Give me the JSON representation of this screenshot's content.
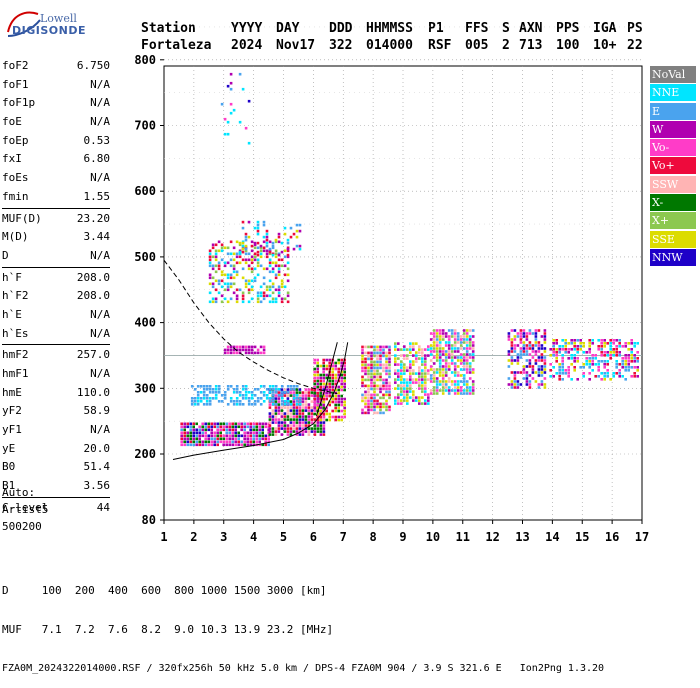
{
  "logo": {
    "line1": "Lowell",
    "line2": "DIGISONDE"
  },
  "header": {
    "row1": [
      "Station",
      "YYYY",
      "DAY",
      "DDD",
      "HHMMSS",
      "P1",
      "FFS",
      "S",
      "AXN",
      "PPS",
      "IGA",
      "PS"
    ],
    "row2": [
      "Fortaleza",
      "2024",
      "Nov17",
      "322",
      "014000",
      "RSF",
      "005",
      "2",
      "713",
      "100",
      "10+",
      "22"
    ]
  },
  "params": [
    [
      {
        "name": "foF2",
        "value": "6.750"
      },
      {
        "name": "foF1",
        "value": "N/A"
      },
      {
        "name": "foF1p",
        "value": "N/A"
      },
      {
        "name": "foE",
        "value": "N/A"
      },
      {
        "name": "foEp",
        "value": "0.53"
      },
      {
        "name": "fxI",
        "value": "6.80"
      },
      {
        "name": "foEs",
        "value": "N/A"
      },
      {
        "name": "fmin",
        "value": "1.55"
      }
    ],
    [
      {
        "name": "MUF(D)",
        "value": "23.20"
      },
      {
        "name": "M(D)",
        "value": "3.44"
      },
      {
        "name": "D",
        "value": "N/A"
      }
    ],
    [
      {
        "name": "h`F",
        "value": "208.0"
      },
      {
        "name": "h`F2",
        "value": "208.0"
      },
      {
        "name": "h`E",
        "value": "N/A"
      },
      {
        "name": "h`Es",
        "value": "N/A"
      }
    ],
    [
      {
        "name": "hmF2",
        "value": "257.0"
      },
      {
        "name": "hmF1",
        "value": "N/A"
      },
      {
        "name": "hmE",
        "value": "110.0"
      },
      {
        "name": "yF2",
        "value": "58.9"
      },
      {
        "name": "yF1",
        "value": "N/A"
      },
      {
        "name": "yE",
        "value": "20.0"
      },
      {
        "name": "B0",
        "value": "51.4"
      },
      {
        "name": "B1",
        "value": "3.56"
      }
    ],
    [
      {
        "name": "C-level",
        "value": "44"
      }
    ]
  ],
  "auto": {
    "line1": "Auto:",
    "line2": "Artist5",
    "line3": "500200"
  },
  "legend": [
    {
      "label": "NoVal",
      "color": "#808080"
    },
    {
      "label": "NNE",
      "color": "#00e5ff"
    },
    {
      "label": "E",
      "color": "#4aa3ee"
    },
    {
      "label": "W",
      "color": "#b000b0"
    },
    {
      "label": "Vo-",
      "color": "#ff3cc8"
    },
    {
      "label": "Vo+",
      "color": "#ee0a3c"
    },
    {
      "label": "SSW",
      "color": "#ffb4b4"
    },
    {
      "label": "X-",
      "color": "#007800"
    },
    {
      "label": "X+",
      "color": "#8cc850"
    },
    {
      "label": "SSE",
      "color": "#dcdc00"
    },
    {
      "label": "NNW",
      "color": "#1e00c8"
    }
  ],
  "footer": {
    "row1": "D     100  200  400  600  800 1000 1500 3000 [km]",
    "row2": "MUF   7.1  7.2  7.6  8.2  9.0 10.3 13.9 23.2 [MHz]",
    "row3": "FZA0M_2024322014000.RSF / 320fx256h 50 kHz 5.0 km / DPS-4 FZA0M 904 / 3.9 S 321.6 E   Ion2Png 1.3.20"
  },
  "chart_data": {
    "type": "scatter",
    "title": "",
    "xlabel": "",
    "ylabel": "",
    "xlim": [
      1,
      17
    ],
    "ylim": [
      80,
      900
    ],
    "x_ticks": [
      1,
      2,
      3,
      4,
      5,
      6,
      7,
      8,
      9,
      10,
      11,
      12,
      13,
      14,
      15,
      16,
      17
    ],
    "y_ticks": [
      80,
      200,
      300,
      400,
      500,
      600,
      700,
      800,
      900
    ],
    "grid": "dotted",
    "reference_line_y": 350,
    "clusters": [
      {
        "name": "F-trace-low",
        "x": [
          1.55,
          4.6
        ],
        "y": [
          212,
          248
        ],
        "colors": [
          "W",
          "Vo-",
          "Vo+",
          "X-",
          "NNW",
          "E",
          "W",
          "Vo-"
        ],
        "density": 0.95
      },
      {
        "name": "F-trace-mid",
        "x": [
          4.5,
          6.4
        ],
        "y": [
          225,
          300
        ],
        "colors": [
          "Vo+",
          "Vo-",
          "W",
          "X-",
          "NNW",
          "SSW"
        ],
        "density": 0.9
      },
      {
        "name": "F-trace-rise",
        "x": [
          6.0,
          7.1
        ],
        "y": [
          250,
          345
        ],
        "colors": [
          "Vo+",
          "Vo-",
          "SSE",
          "W",
          "X-"
        ],
        "density": 0.85
      },
      {
        "name": "E-blue-band",
        "x": [
          1.9,
          5.6
        ],
        "y": [
          275,
          305
        ],
        "colors": [
          "E",
          "NNE",
          "E"
        ],
        "density": 0.6
      },
      {
        "name": "band-8",
        "x": [
          7.6,
          8.6
        ],
        "y": [
          262,
          365
        ],
        "colors": [
          "Vo+",
          "W",
          "Vo-",
          "SSE",
          "SSW",
          "X+",
          "E"
        ],
        "density": 0.8
      },
      {
        "name": "band-9",
        "x": [
          8.7,
          9.9
        ],
        "y": [
          275,
          370
        ],
        "colors": [
          "W",
          "Vo-",
          "SSE",
          "SSW",
          "X+",
          "NNE"
        ],
        "density": 0.75
      },
      {
        "name": "band-10",
        "x": [
          9.9,
          11.4
        ],
        "y": [
          290,
          390
        ],
        "colors": [
          "NNE",
          "E",
          "W",
          "SSE",
          "X+",
          "SSW",
          "Vo-"
        ],
        "density": 0.75
      },
      {
        "name": "band-13",
        "x": [
          12.5,
          13.8
        ],
        "y": [
          300,
          390
        ],
        "colors": [
          "W",
          "Vo-",
          "SSE",
          "NNW",
          "Vo+",
          "E"
        ],
        "density": 0.6
      },
      {
        "name": "band-15",
        "x": [
          13.9,
          16.9
        ],
        "y": [
          310,
          375
        ],
        "colors": [
          "W",
          "Vo-",
          "E",
          "SSE",
          "NNE",
          "Vo+"
        ],
        "density": 0.55
      },
      {
        "name": "second-hop",
        "x": [
          2.5,
          5.2
        ],
        "y": [
          430,
          525
        ],
        "colors": [
          "SSE",
          "W",
          "Vo+",
          "NNE",
          "E",
          "X+"
        ],
        "density": 0.45
      },
      {
        "name": "second-hop-upper",
        "x": [
          3.5,
          5.6
        ],
        "y": [
          500,
          555
        ],
        "colors": [
          "Vo+",
          "W",
          "SSE",
          "NNE",
          "E"
        ],
        "density": 0.25
      },
      {
        "name": "purple-row",
        "x": [
          3.0,
          4.4
        ],
        "y": [
          353,
          365
        ],
        "colors": [
          "W",
          "W",
          "Vo-"
        ],
        "density": 0.8
      },
      {
        "name": "third-hop",
        "x": [
          2.9,
          3.9
        ],
        "y": [
          660,
          780
        ],
        "colors": [
          "E",
          "NNE",
          "W",
          "Vo-",
          "NNW"
        ],
        "density": 0.1
      }
    ],
    "traces": [
      {
        "name": "profile-curve",
        "points": [
          [
            1.3,
            190
          ],
          [
            2,
            198
          ],
          [
            3,
            206
          ],
          [
            4,
            213
          ],
          [
            5,
            222
          ],
          [
            5.5,
            232
          ],
          [
            6.0,
            246
          ],
          [
            6.4,
            268
          ],
          [
            6.7,
            295
          ],
          [
            6.9,
            320
          ],
          [
            7.05,
            345
          ],
          [
            7.15,
            370
          ]
        ]
      },
      {
        "name": "profile-curve-2",
        "points": [
          [
            6.1,
            258
          ],
          [
            6.4,
            300
          ],
          [
            6.6,
            335
          ],
          [
            6.8,
            370
          ]
        ]
      },
      {
        "name": "dashed-curve",
        "dashed": true,
        "points": [
          [
            1,
            495
          ],
          [
            1.5,
            465
          ],
          [
            2.0,
            430
          ],
          [
            2.5,
            400
          ],
          [
            3.0,
            375
          ],
          [
            3.5,
            355
          ],
          [
            4.0,
            340
          ],
          [
            4.5,
            327
          ],
          [
            5.0,
            316
          ],
          [
            5.5,
            307
          ],
          [
            6.0,
            300
          ],
          [
            6.5,
            295
          ],
          [
            6.8,
            292
          ]
        ]
      }
    ]
  }
}
